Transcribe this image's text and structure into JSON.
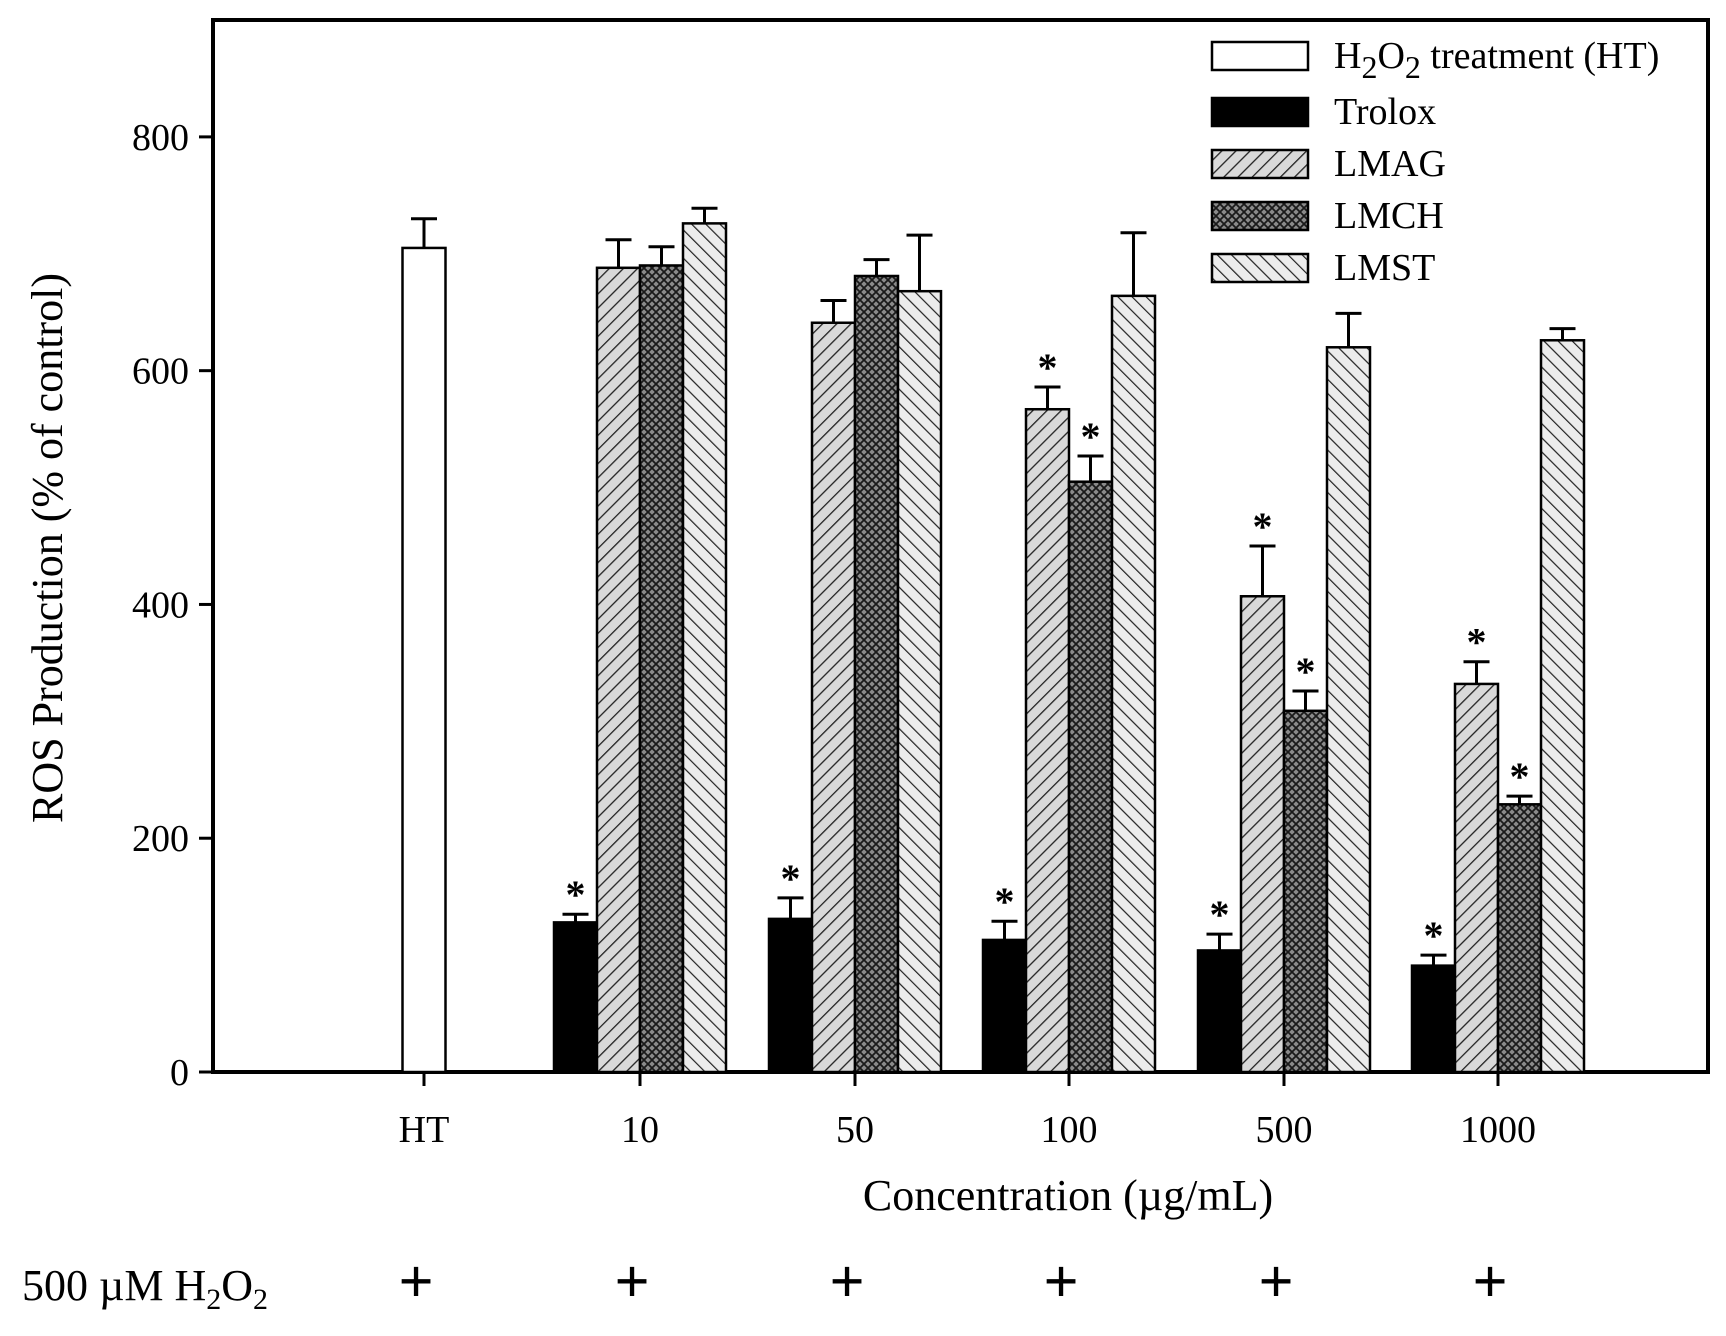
{
  "chart_data": {
    "type": "bar",
    "title": "",
    "ylabel": "ROS Production (% of control)",
    "xlabel": "Concentration (µg/mL)",
    "ylim": [
      0,
      900
    ],
    "yticks": [
      0,
      200,
      400,
      600,
      800
    ],
    "categories": [
      "HT",
      "10",
      "50",
      "100",
      "500",
      "1000"
    ],
    "series": [
      {
        "name": "H2O2 treatment (HT)",
        "legend_label": "treatment (HT)",
        "pattern": "white",
        "values": [
          705,
          null,
          null,
          null,
          null,
          null
        ],
        "errors": [
          25,
          null,
          null,
          null,
          null,
          null
        ],
        "significant": [
          false,
          false,
          false,
          false,
          false,
          false
        ]
      },
      {
        "name": "Trolox",
        "legend_label": "Trolox",
        "pattern": "black",
        "values": [
          null,
          128,
          131,
          113,
          104,
          91
        ],
        "errors": [
          null,
          7,
          18,
          16,
          14,
          9
        ],
        "significant": [
          false,
          true,
          true,
          true,
          true,
          true
        ]
      },
      {
        "name": "LMAG",
        "legend_label": "LMAG",
        "pattern": "diag-fwd",
        "values": [
          null,
          688,
          641,
          567,
          407,
          332
        ],
        "errors": [
          null,
          24,
          19,
          19,
          43,
          19
        ],
        "significant": [
          false,
          false,
          false,
          true,
          true,
          true
        ]
      },
      {
        "name": "LMCH",
        "legend_label": "LMCH",
        "pattern": "crosshatch",
        "values": [
          null,
          690,
          681,
          505,
          309,
          229
        ],
        "errors": [
          null,
          16,
          14,
          22,
          17,
          7
        ],
        "significant": [
          false,
          false,
          false,
          true,
          true,
          true
        ]
      },
      {
        "name": "LMST",
        "legend_label": "LMST",
        "pattern": "diag-back",
        "values": [
          null,
          726,
          668,
          664,
          620,
          626
        ],
        "errors": [
          null,
          13,
          48,
          54,
          29,
          10
        ],
        "significant": [
          false,
          false,
          false,
          false,
          false,
          false
        ]
      }
    ],
    "significance_marker": "*",
    "legend_position": "top-right"
  },
  "treatment_row": {
    "label_prefix": "500 µM H",
    "label_o": "O",
    "subscript": "2",
    "marks": [
      "+",
      "+",
      "+",
      "+",
      "+",
      "+"
    ]
  },
  "legend_h2o2": {
    "h": "H",
    "sub": "2",
    "o": "O"
  }
}
